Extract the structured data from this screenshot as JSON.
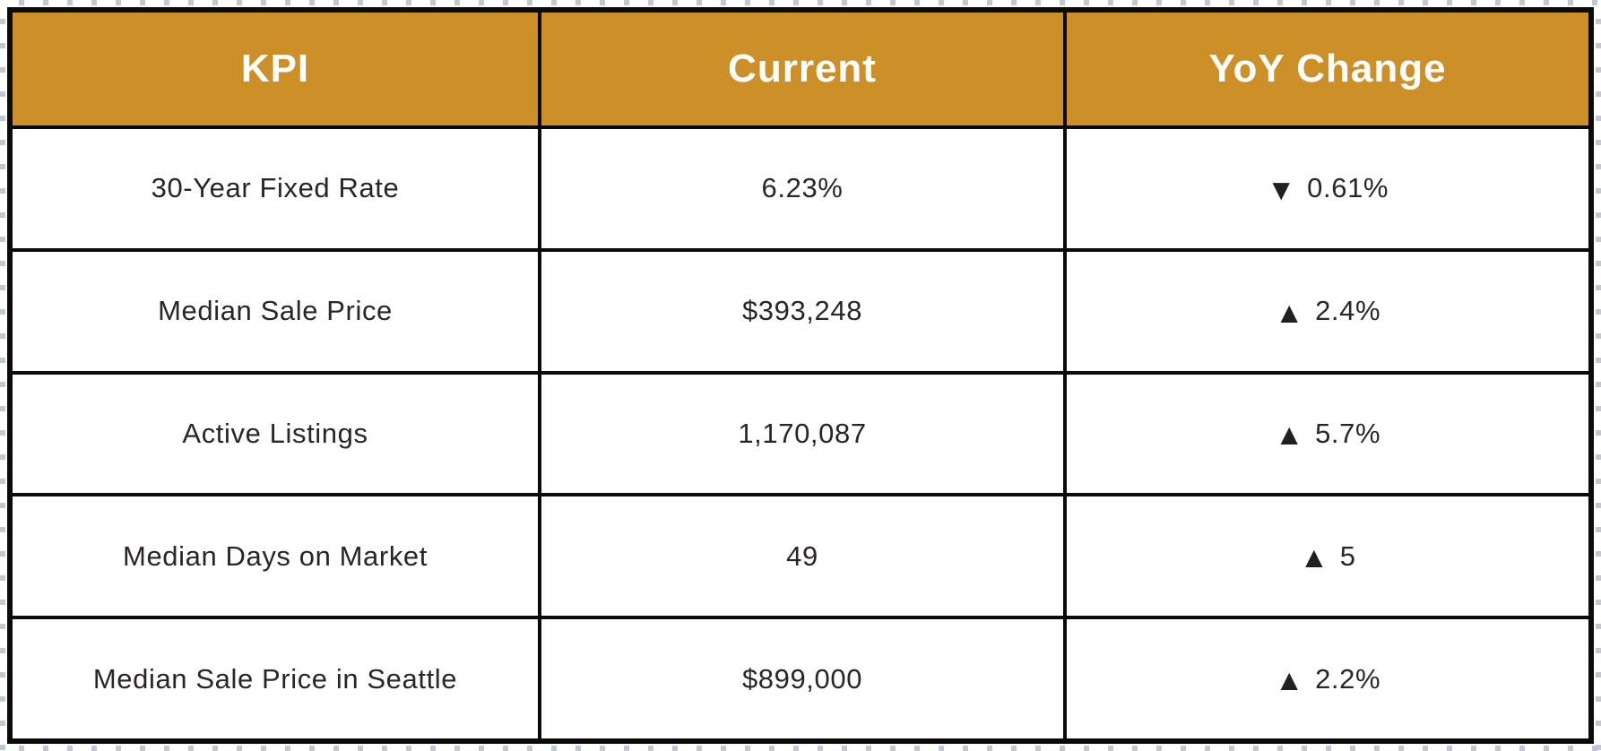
{
  "table": {
    "columns": [
      {
        "label": "KPI"
      },
      {
        "label": "Current"
      },
      {
        "label": "YoY Change"
      }
    ],
    "rows": [
      {
        "kpi": "30-Year Fixed Rate",
        "current": "6.23%",
        "trend": "down",
        "arrow": "▼",
        "change": "0.61%"
      },
      {
        "kpi": "Median Sale Price",
        "current": "$393,248",
        "trend": "up",
        "arrow": "▲",
        "change": "2.4%"
      },
      {
        "kpi": "Active Listings",
        "current": "1,170,087",
        "trend": "up",
        "arrow": "▲",
        "change": "5.7%"
      },
      {
        "kpi": "Median Days on Market",
        "current": "49",
        "trend": "up",
        "arrow": "▲",
        "change": "5"
      },
      {
        "kpi": "Median Sale Price in Seattle",
        "current": "$899,000",
        "trend": "up",
        "arrow": "▲",
        "change": "2.2%"
      }
    ]
  },
  "chart_data": {
    "type": "table",
    "columns": [
      "KPI",
      "Current",
      "YoY Change"
    ],
    "rows": [
      [
        "30-Year Fixed Rate",
        "6.23%",
        "▼ 0.61%"
      ],
      [
        "Median Sale Price",
        "$393,248",
        "▲ 2.4%"
      ],
      [
        "Active Listings",
        "1,170,087",
        "▲ 5.7%"
      ],
      [
        "Median Days on Market",
        "49",
        "▲ 5"
      ],
      [
        "Median Sale Price in Seattle",
        "$899,000",
        "▲ 2.2%"
      ]
    ]
  },
  "colors": {
    "header_bg": "#cd8f28",
    "header_text": "#ffffff",
    "body_text": "#2a2627",
    "border": "#0b0b0b",
    "edge_dot": "#b9c3ce"
  }
}
